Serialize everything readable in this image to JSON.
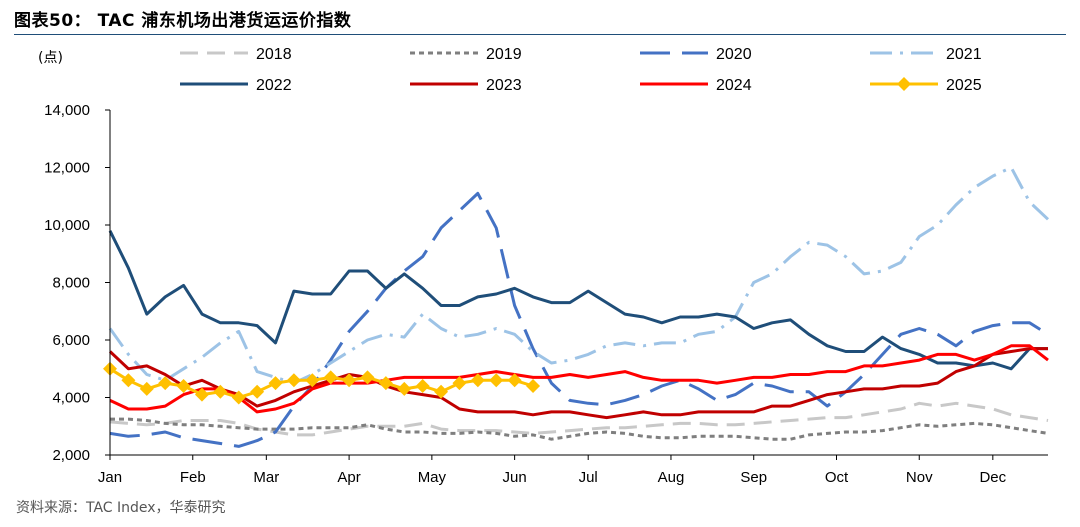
{
  "title": "图表50：  TAC 浦东机场出港货运运价指数",
  "source": "资料来源：TAC Index，华泰研究",
  "chart_data": {
    "type": "line",
    "unit_label": "(点)",
    "ylim": [
      2000,
      14000
    ],
    "yticks": [
      2000,
      4000,
      6000,
      8000,
      10000,
      12000,
      14000
    ],
    "ytick_labels": [
      "2,000",
      "4,000",
      "6,000",
      "8,000",
      "10,000",
      "12,000",
      "14,000"
    ],
    "xlim": [
      1,
      52
    ],
    "x_ticks": [
      {
        "label": "Jan",
        "week": 1
      },
      {
        "label": "Feb",
        "week": 5.5
      },
      {
        "label": "Mar",
        "week": 9.5
      },
      {
        "label": "Apr",
        "week": 14
      },
      {
        "label": "May",
        "week": 18.5
      },
      {
        "label": "Jun",
        "week": 23
      },
      {
        "label": "Jul",
        "week": 27
      },
      {
        "label": "Aug",
        "week": 31.5
      },
      {
        "label": "Sep",
        "week": 36
      },
      {
        "label": "Oct",
        "week": 40.5
      },
      {
        "label": "Nov",
        "week": 45
      },
      {
        "label": "Dec",
        "week": 49
      }
    ],
    "legend": "top, 4 columns x 2 rows",
    "grid": false,
    "series": [
      {
        "name": "2018",
        "color": "#c8c8c8",
        "style": "dash",
        "values": [
          3150,
          3100,
          3050,
          3100,
          3200,
          3200,
          3200,
          3100,
          2900,
          2800,
          2700,
          2700,
          2800,
          2900,
          3000,
          3000,
          3000,
          3100,
          2900,
          2850,
          2850,
          2850,
          2800,
          2750,
          2800,
          2850,
          2900,
          2950,
          2950,
          3000,
          3050,
          3100,
          3100,
          3050,
          3050,
          3100,
          3150,
          3200,
          3250,
          3300,
          3300,
          3400,
          3500,
          3600,
          3800,
          3700,
          3800,
          3700,
          3600,
          3400,
          3300,
          3200
        ]
      },
      {
        "name": "2019",
        "color": "#7f7f7f",
        "style": "dot",
        "values": [
          3250,
          3250,
          3200,
          3100,
          3050,
          3050,
          3000,
          2950,
          2900,
          2900,
          2900,
          2950,
          2950,
          2950,
          3050,
          2900,
          2800,
          2800,
          2750,
          2750,
          2800,
          2750,
          2650,
          2700,
          2550,
          2650,
          2750,
          2800,
          2750,
          2650,
          2600,
          2600,
          2650,
          2650,
          2650,
          2600,
          2550,
          2550,
          2700,
          2750,
          2800,
          2800,
          2850,
          2950,
          3050,
          3000,
          3050,
          3100,
          3050,
          2950,
          2850,
          2750
        ]
      },
      {
        "name": "2020",
        "color": "#4472c4",
        "style": "longdash",
        "values": [
          2750,
          2650,
          2700,
          2800,
          2600,
          2500,
          2400,
          2300,
          2500,
          2800,
          3700,
          4400,
          5300,
          6300,
          7000,
          7800,
          8400,
          8900,
          9900,
          10500,
          11100,
          9900,
          7200,
          5700,
          4500,
          3900,
          3800,
          3750,
          3900,
          4100,
          4400,
          4600,
          4300,
          3900,
          4100,
          4500,
          4400,
          4200,
          4200,
          3700,
          4200,
          4800,
          5500,
          6200,
          6400,
          6200,
          5800,
          6300,
          6500,
          6600,
          6600,
          6200
        ]
      },
      {
        "name": "2021",
        "color": "#9dc3e6",
        "style": "dashdot",
        "values": [
          6400,
          5500,
          4800,
          4600,
          5000,
          5400,
          5900,
          6300,
          4900,
          4700,
          4500,
          4800,
          5200,
          5600,
          6000,
          6200,
          6100,
          6900,
          6400,
          6100,
          6200,
          6400,
          6200,
          5600,
          5200,
          5300,
          5500,
          5800,
          5900,
          5800,
          5900,
          5900,
          6200,
          6300,
          6800,
          8000,
          8300,
          8900,
          9400,
          9300,
          8900,
          8300,
          8400,
          8700,
          9600,
          10000,
          10700,
          11300,
          11700,
          12000,
          10800,
          10200
        ]
      },
      {
        "name": "2022",
        "color": "#1f4e79",
        "style": "solid",
        "values": [
          9800,
          8500,
          6900,
          7500,
          7900,
          6900,
          6600,
          6600,
          6500,
          5900,
          7700,
          7600,
          7600,
          8400,
          8400,
          7800,
          8300,
          7800,
          7200,
          7200,
          7500,
          7600,
          7800,
          7500,
          7300,
          7300,
          7700,
          7300,
          6900,
          6800,
          6600,
          6800,
          6800,
          6900,
          6800,
          6400,
          6600,
          6700,
          6200,
          5800,
          5600,
          5600,
          6100,
          5700,
          5500,
          5200,
          5200,
          5100,
          5200,
          5000,
          5700,
          5700
        ]
      },
      {
        "name": "2023",
        "color": "#c00000",
        "style": "solid",
        "values": [
          5600,
          5000,
          5100,
          4800,
          4400,
          4600,
          4300,
          4100,
          3700,
          3900,
          4200,
          4400,
          4600,
          4800,
          4700,
          4400,
          4200,
          4100,
          4000,
          3600,
          3500,
          3500,
          3500,
          3400,
          3500,
          3500,
          3400,
          3300,
          3400,
          3500,
          3400,
          3400,
          3500,
          3500,
          3500,
          3500,
          3700,
          3700,
          3900,
          4100,
          4200,
          4300,
          4300,
          4400,
          4400,
          4500,
          4900,
          5100,
          5500,
          5600,
          5700,
          5700
        ]
      },
      {
        "name": "2024",
        "color": "#ff0000",
        "style": "solid",
        "values": [
          3900,
          3600,
          3600,
          3700,
          4100,
          4300,
          4300,
          4000,
          3500,
          3600,
          3800,
          4300,
          4500,
          4500,
          4500,
          4600,
          4700,
          4700,
          4700,
          4700,
          4800,
          4900,
          4800,
          4700,
          4700,
          4800,
          4700,
          4800,
          4900,
          4700,
          4600,
          4600,
          4600,
          4500,
          4600,
          4700,
          4700,
          4800,
          4800,
          4900,
          4900,
          5100,
          5100,
          5200,
          5300,
          5500,
          5500,
          5300,
          5500,
          5800,
          5800,
          5300
        ]
      },
      {
        "name": "2025",
        "color": "#ffc000",
        "style": "solid-diamond",
        "values": [
          5000,
          4600,
          4300,
          4500,
          4400,
          4100,
          4200,
          4000,
          4200,
          4500,
          4600,
          4600,
          4700,
          4600,
          4700,
          4500,
          4300,
          4400,
          4200,
          4500,
          4600,
          4600,
          4600,
          4400
        ]
      }
    ]
  }
}
